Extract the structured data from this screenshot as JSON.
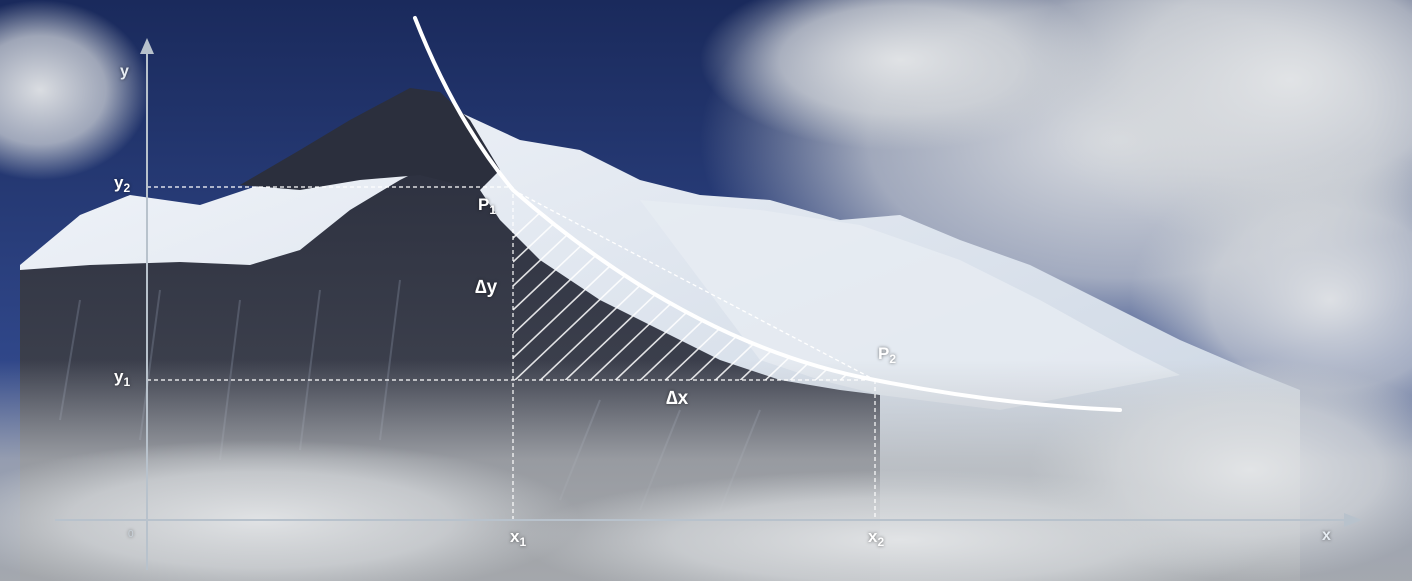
{
  "axes": {
    "x_label": "x",
    "y_label": "y",
    "origin_label": "0"
  },
  "points": {
    "p1": {
      "name": "P",
      "sub": "1"
    },
    "p2": {
      "name": "P",
      "sub": "2"
    }
  },
  "ticks": {
    "x1": {
      "name": "x",
      "sub": "1"
    },
    "x2": {
      "name": "x",
      "sub": "2"
    },
    "y1": {
      "name": "y",
      "sub": "1"
    },
    "y2": {
      "name": "y",
      "sub": "2"
    }
  },
  "deltas": {
    "dy": "∆y",
    "dx": "∆x"
  },
  "colors": {
    "sky_top": "#1d2f63",
    "sky_mid": "#31478a",
    "snow": "#dde6f0",
    "rock": "#343846",
    "cloud": "#d9dcdf",
    "curve": "#ffffff",
    "axis": "#b8c2cc"
  }
}
